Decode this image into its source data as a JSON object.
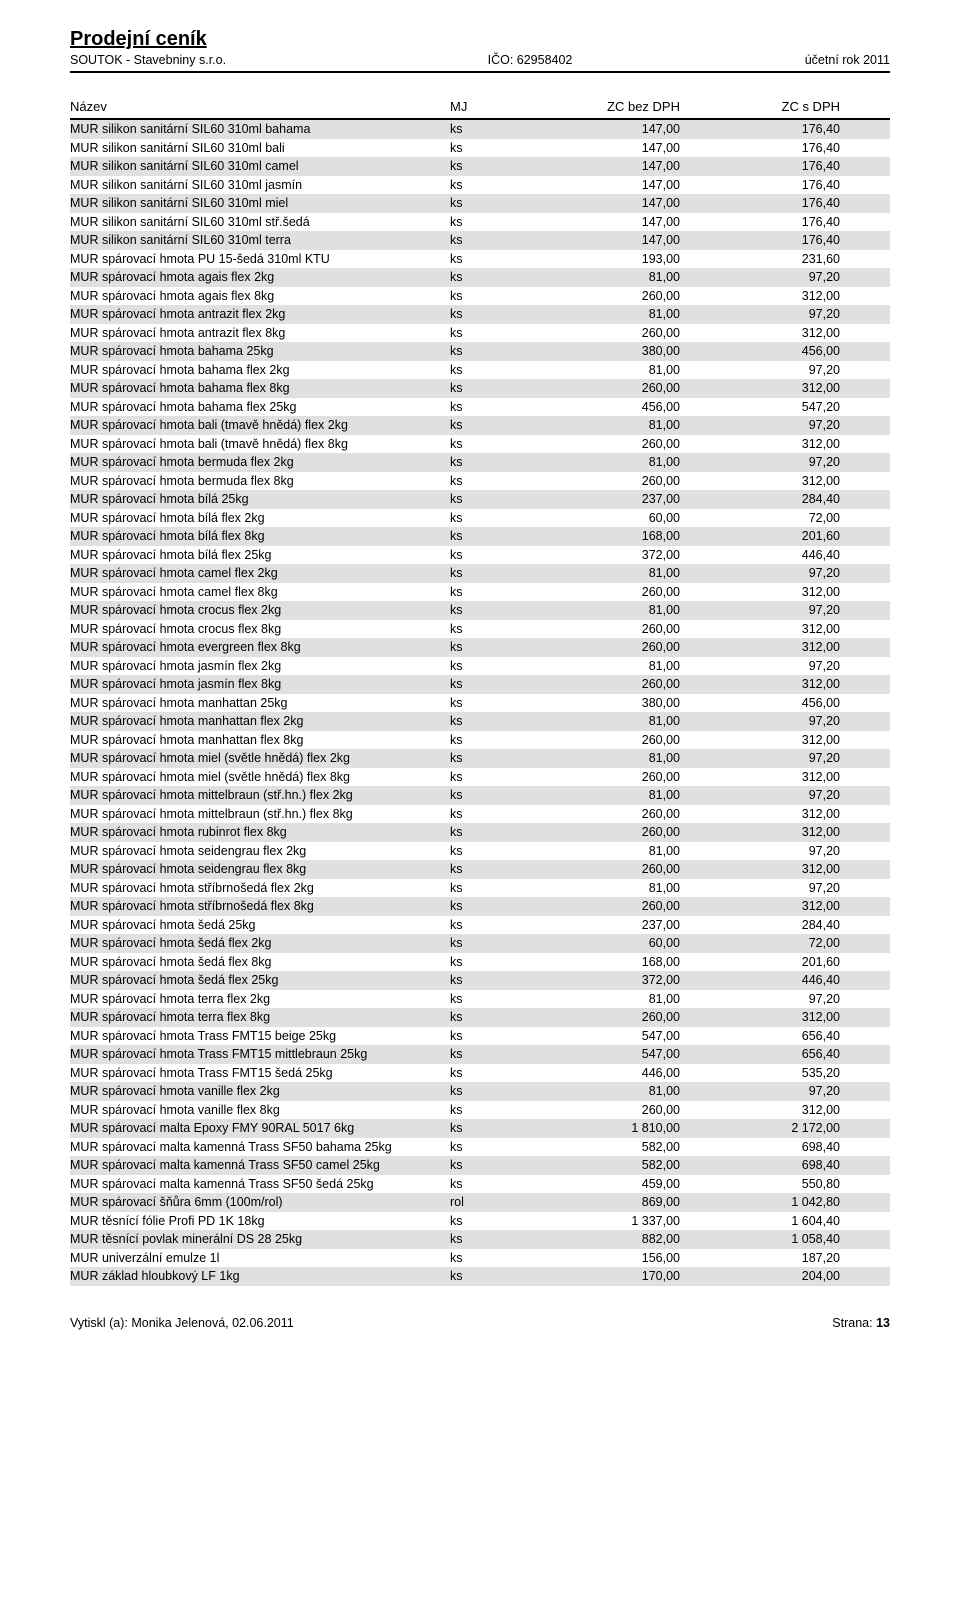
{
  "title": "Prodejní ceník",
  "company": "SOUTOK - Stavebniny  s.r.o.",
  "ico_label": "IČO:  62958402",
  "year_label": "účetní rok  2011",
  "headers": {
    "name": "Název",
    "mj": "MJ",
    "zc1": "ZC bez DPH",
    "zc2": "ZC s DPH"
  },
  "rows": [
    {
      "name": "MUR silikon sanitární SIL60 310ml bahama",
      "mj": "ks",
      "p1": "147,00",
      "p2": "176,40"
    },
    {
      "name": "MUR silikon sanitární SIL60 310ml bali",
      "mj": "ks",
      "p1": "147,00",
      "p2": "176,40"
    },
    {
      "name": "MUR silikon sanitární SIL60 310ml camel",
      "mj": "ks",
      "p1": "147,00",
      "p2": "176,40"
    },
    {
      "name": "MUR silikon sanitární SIL60 310ml jasmín",
      "mj": "ks",
      "p1": "147,00",
      "p2": "176,40"
    },
    {
      "name": "MUR silikon sanitární SIL60 310ml miel",
      "mj": "ks",
      "p1": "147,00",
      "p2": "176,40"
    },
    {
      "name": "MUR silikon sanitární SIL60 310ml stř.šedá",
      "mj": "ks",
      "p1": "147,00",
      "p2": "176,40"
    },
    {
      "name": "MUR silikon sanitární SIL60 310ml terra",
      "mj": "ks",
      "p1": "147,00",
      "p2": "176,40"
    },
    {
      "name": "MUR spárovací hmota  PU 15-šedá 310ml KTU",
      "mj": "ks",
      "p1": "193,00",
      "p2": "231,60"
    },
    {
      "name": "MUR spárovací hmota agais flex 2kg",
      "mj": "ks",
      "p1": "81,00",
      "p2": "97,20"
    },
    {
      "name": "MUR spárovací hmota agais flex 8kg",
      "mj": "ks",
      "p1": "260,00",
      "p2": "312,00"
    },
    {
      "name": "MUR spárovací hmota antrazit flex 2kg",
      "mj": "ks",
      "p1": "81,00",
      "p2": "97,20"
    },
    {
      "name": "MUR spárovací hmota antrazit flex 8kg",
      "mj": "ks",
      "p1": "260,00",
      "p2": "312,00"
    },
    {
      "name": "MUR spárovací hmota bahama  25kg",
      "mj": "ks",
      "p1": "380,00",
      "p2": "456,00"
    },
    {
      "name": "MUR spárovací hmota bahama flex   2kg",
      "mj": "ks",
      "p1": "81,00",
      "p2": "97,20"
    },
    {
      "name": "MUR spárovací hmota bahama flex   8kg",
      "mj": "ks",
      "p1": "260,00",
      "p2": "312,00"
    },
    {
      "name": "MUR spárovací hmota bahama flex  25kg",
      "mj": "ks",
      "p1": "456,00",
      "p2": "547,20"
    },
    {
      "name": "MUR spárovací hmota bali (tmavě hnědá) flex  2kg",
      "mj": "ks",
      "p1": "81,00",
      "p2": "97,20"
    },
    {
      "name": "MUR spárovací hmota bali (tmavě hnědá) flex  8kg",
      "mj": "ks",
      "p1": "260,00",
      "p2": "312,00"
    },
    {
      "name": "MUR spárovací hmota bermuda flex  2kg",
      "mj": "ks",
      "p1": "81,00",
      "p2": "97,20"
    },
    {
      "name": "MUR spárovací hmota bermuda flex  8kg",
      "mj": "ks",
      "p1": "260,00",
      "p2": "312,00"
    },
    {
      "name": "MUR spárovací hmota bílá   25kg",
      "mj": "ks",
      "p1": "237,00",
      "p2": "284,40"
    },
    {
      "name": "MUR spárovací hmota bílá flex   2kg",
      "mj": "ks",
      "p1": "60,00",
      "p2": "72,00"
    },
    {
      "name": "MUR spárovací hmota bílá flex   8kg",
      "mj": "ks",
      "p1": "168,00",
      "p2": "201,60"
    },
    {
      "name": "MUR spárovací hmota bílá flex  25kg",
      "mj": "ks",
      "p1": "372,00",
      "p2": "446,40"
    },
    {
      "name": "MUR spárovací hmota camel flex 2kg",
      "mj": "ks",
      "p1": "81,00",
      "p2": "97,20"
    },
    {
      "name": "MUR spárovací hmota camel flex 8kg",
      "mj": "ks",
      "p1": "260,00",
      "p2": "312,00"
    },
    {
      "name": "MUR spárovací hmota crocus flex   2kg",
      "mj": "ks",
      "p1": "81,00",
      "p2": "97,20"
    },
    {
      "name": "MUR spárovací hmota crocus flex   8kg",
      "mj": "ks",
      "p1": "260,00",
      "p2": "312,00"
    },
    {
      "name": "MUR spárovací hmota evergreen flex 8kg",
      "mj": "ks",
      "p1": "260,00",
      "p2": "312,00"
    },
    {
      "name": "MUR spárovací hmota jasmín flex  2kg",
      "mj": "ks",
      "p1": "81,00",
      "p2": "97,20"
    },
    {
      "name": "MUR spárovací hmota jasmín flex  8kg",
      "mj": "ks",
      "p1": "260,00",
      "p2": "312,00"
    },
    {
      "name": "MUR spárovací hmota manhattan   25kg",
      "mj": "ks",
      "p1": "380,00",
      "p2": "456,00"
    },
    {
      "name": "MUR spárovací hmota manhattan flex    2kg",
      "mj": "ks",
      "p1": "81,00",
      "p2": "97,20"
    },
    {
      "name": "MUR spárovací hmota manhattan flex    8kg",
      "mj": "ks",
      "p1": "260,00",
      "p2": "312,00"
    },
    {
      "name": "MUR spárovací hmota miel (světle hnědá)  flex 2kg",
      "mj": "ks",
      "p1": "81,00",
      "p2": "97,20"
    },
    {
      "name": "MUR spárovací hmota miel (světle hnědá)  flex 8kg",
      "mj": "ks",
      "p1": "260,00",
      "p2": "312,00"
    },
    {
      "name": "MUR spárovací hmota mittelbraun (stř.hn.) flex 2kg",
      "mj": "ks",
      "p1": "81,00",
      "p2": "97,20"
    },
    {
      "name": "MUR spárovací hmota mittelbraun (stř.hn.) flex 8kg",
      "mj": "ks",
      "p1": "260,00",
      "p2": "312,00"
    },
    {
      "name": "MUR spárovací hmota rubinrot flex 8kg",
      "mj": "ks",
      "p1": "260,00",
      "p2": "312,00"
    },
    {
      "name": "MUR spárovací hmota seidengrau flex    2kg",
      "mj": "ks",
      "p1": "81,00",
      "p2": "97,20"
    },
    {
      "name": "MUR spárovací hmota seidengrau flex    8kg",
      "mj": "ks",
      "p1": "260,00",
      "p2": "312,00"
    },
    {
      "name": "MUR spárovací hmota stříbrnošedá flex    2kg",
      "mj": "ks",
      "p1": "81,00",
      "p2": "97,20"
    },
    {
      "name": "MUR spárovací hmota stříbrnošedá flex    8kg",
      "mj": "ks",
      "p1": "260,00",
      "p2": "312,00"
    },
    {
      "name": "MUR spárovací hmota šedá  25kg",
      "mj": "ks",
      "p1": "237,00",
      "p2": "284,40"
    },
    {
      "name": "MUR spárovací hmota šedá flex   2kg",
      "mj": "ks",
      "p1": "60,00",
      "p2": "72,00"
    },
    {
      "name": "MUR spárovací hmota šedá flex   8kg",
      "mj": "ks",
      "p1": "168,00",
      "p2": "201,60"
    },
    {
      "name": "MUR spárovací hmota šedá flex  25kg",
      "mj": "ks",
      "p1": "372,00",
      "p2": "446,40"
    },
    {
      "name": "MUR spárovací hmota terra flex 2kg",
      "mj": "ks",
      "p1": "81,00",
      "p2": "97,20"
    },
    {
      "name": "MUR spárovací hmota terra flex 8kg",
      "mj": "ks",
      "p1": "260,00",
      "p2": "312,00"
    },
    {
      "name": "MUR spárovací hmota Trass FMT15 beige 25kg",
      "mj": "ks",
      "p1": "547,00",
      "p2": "656,40"
    },
    {
      "name": "MUR spárovací hmota Trass FMT15 mittlebraun 25kg",
      "mj": "ks",
      "p1": "547,00",
      "p2": "656,40"
    },
    {
      "name": "MUR spárovací hmota Trass FMT15 šedá 25kg",
      "mj": "ks",
      "p1": "446,00",
      "p2": "535,20"
    },
    {
      "name": "MUR spárovací hmota vanille flex   2kg",
      "mj": "ks",
      "p1": "81,00",
      "p2": "97,20"
    },
    {
      "name": "MUR spárovací hmota vanille flex   8kg",
      "mj": "ks",
      "p1": "260,00",
      "p2": "312,00"
    },
    {
      "name": "MUR spárovací malta Epoxy FMY 90RAL 5017 6kg",
      "mj": "ks",
      "p1": "1 810,00",
      "p2": "2 172,00"
    },
    {
      "name": "MUR spárovací malta kamenná Trass SF50 bahama 25kg",
      "mj": "ks",
      "p1": "582,00",
      "p2": "698,40"
    },
    {
      "name": "MUR spárovací malta kamenná Trass SF50 camel 25kg",
      "mj": "ks",
      "p1": "582,00",
      "p2": "698,40"
    },
    {
      "name": "MUR spárovací malta kamenná Trass SF50 šedá 25kg",
      "mj": "ks",
      "p1": "459,00",
      "p2": "550,80"
    },
    {
      "name": "MUR spárovací šňůra 6mm (100m/rol)",
      "mj": "rol",
      "p1": "869,00",
      "p2": "1 042,80"
    },
    {
      "name": "MUR těsnící fólie Profi PD 1K 18kg",
      "mj": "ks",
      "p1": "1 337,00",
      "p2": "1 604,40"
    },
    {
      "name": "MUR těsnící povlak minerální DS 28 25kg",
      "mj": "ks",
      "p1": "882,00",
      "p2": "1 058,40"
    },
    {
      "name": "MUR univerzální emulze 1l",
      "mj": "ks",
      "p1": "156,00",
      "p2": "187,20"
    },
    {
      "name": "MUR základ hloubkový LF 1kg",
      "mj": "ks",
      "p1": "170,00",
      "p2": "204,00"
    }
  ],
  "footer_left": "Vytiskl (a): Monika Jelenová, 02.06.2011",
  "footer_right_label": "Strana:",
  "footer_right_num": "13"
}
